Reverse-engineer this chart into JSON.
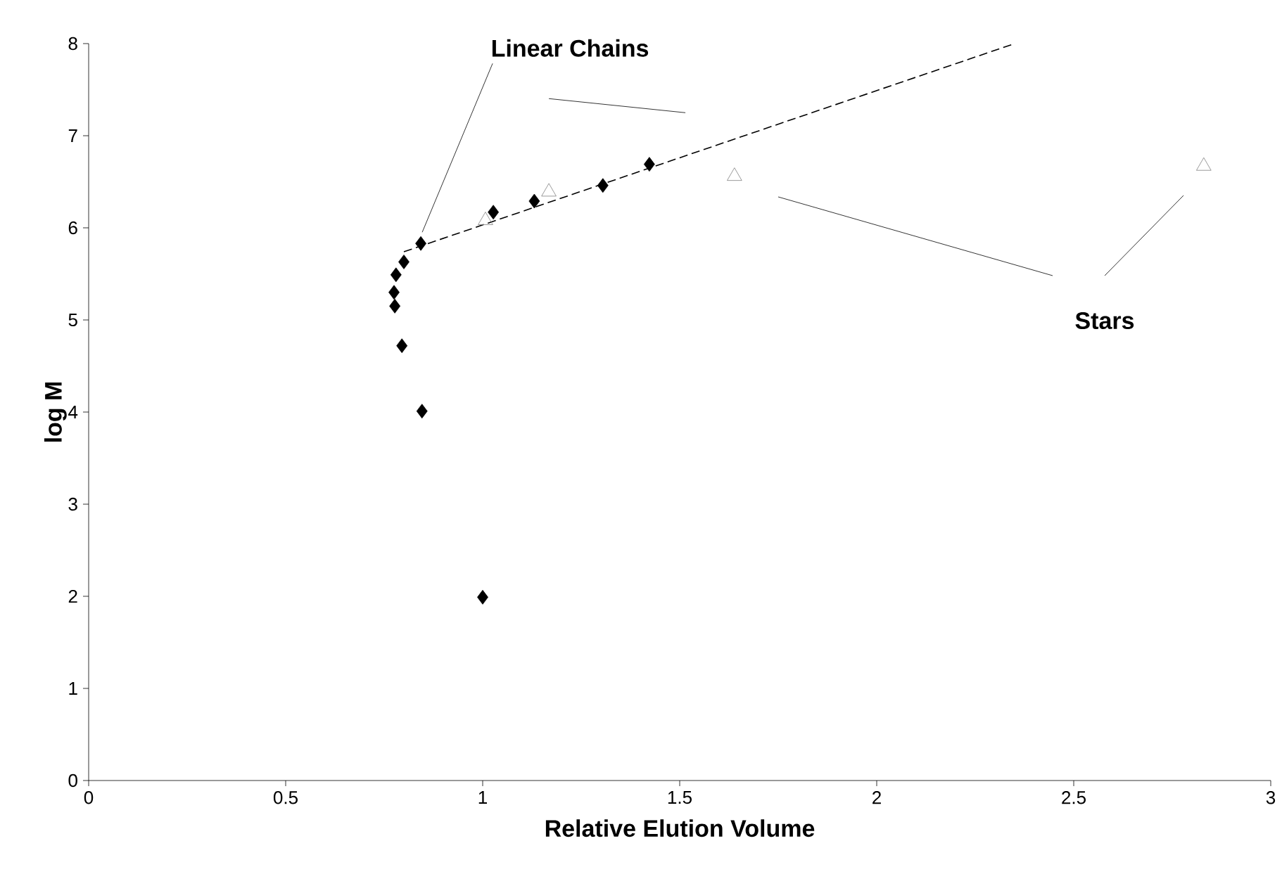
{
  "chart_data": {
    "type": "scatter",
    "xlabel": "Relative Elution Volume",
    "ylabel": "log M",
    "xlim": [
      0,
      3
    ],
    "ylim": [
      0,
      8
    ],
    "xticks": [
      0,
      0.5,
      1,
      1.5,
      2,
      2.5,
      3
    ],
    "yticks": [
      0,
      1,
      2,
      3,
      4,
      5,
      6,
      7,
      8
    ],
    "grid": false,
    "series": [
      {
        "type": "line",
        "color": "#000000",
        "line_style": "dashed",
        "marker": "none",
        "x": [
          0.8,
          2.35
        ],
        "values": [
          5.74,
          8.0
        ]
      },
      {
        "color": "#000000",
        "marker": "diamond",
        "x": [
          0.843,
          0.8,
          0.78,
          0.775,
          0.777,
          0.795,
          0.846,
          1.0,
          1.027,
          1.131,
          1.305,
          1.423
        ],
        "values": [
          5.83,
          5.63,
          5.49,
          5.3,
          5.15,
          4.72,
          4.01,
          1.99,
          6.17,
          6.29,
          6.46,
          6.69
        ]
      },
      {
        "color": "#808080",
        "marker": "triangle",
        "x": [
          1.007,
          1.168,
          1.639,
          2.83
        ],
        "values": [
          6.08,
          6.39,
          6.56,
          6.67
        ]
      }
    ],
    "annotations": [
      {
        "text": "Linear Chains",
        "x": 0.843,
        "y": 5.83
      },
      "Stars"
    ]
  }
}
